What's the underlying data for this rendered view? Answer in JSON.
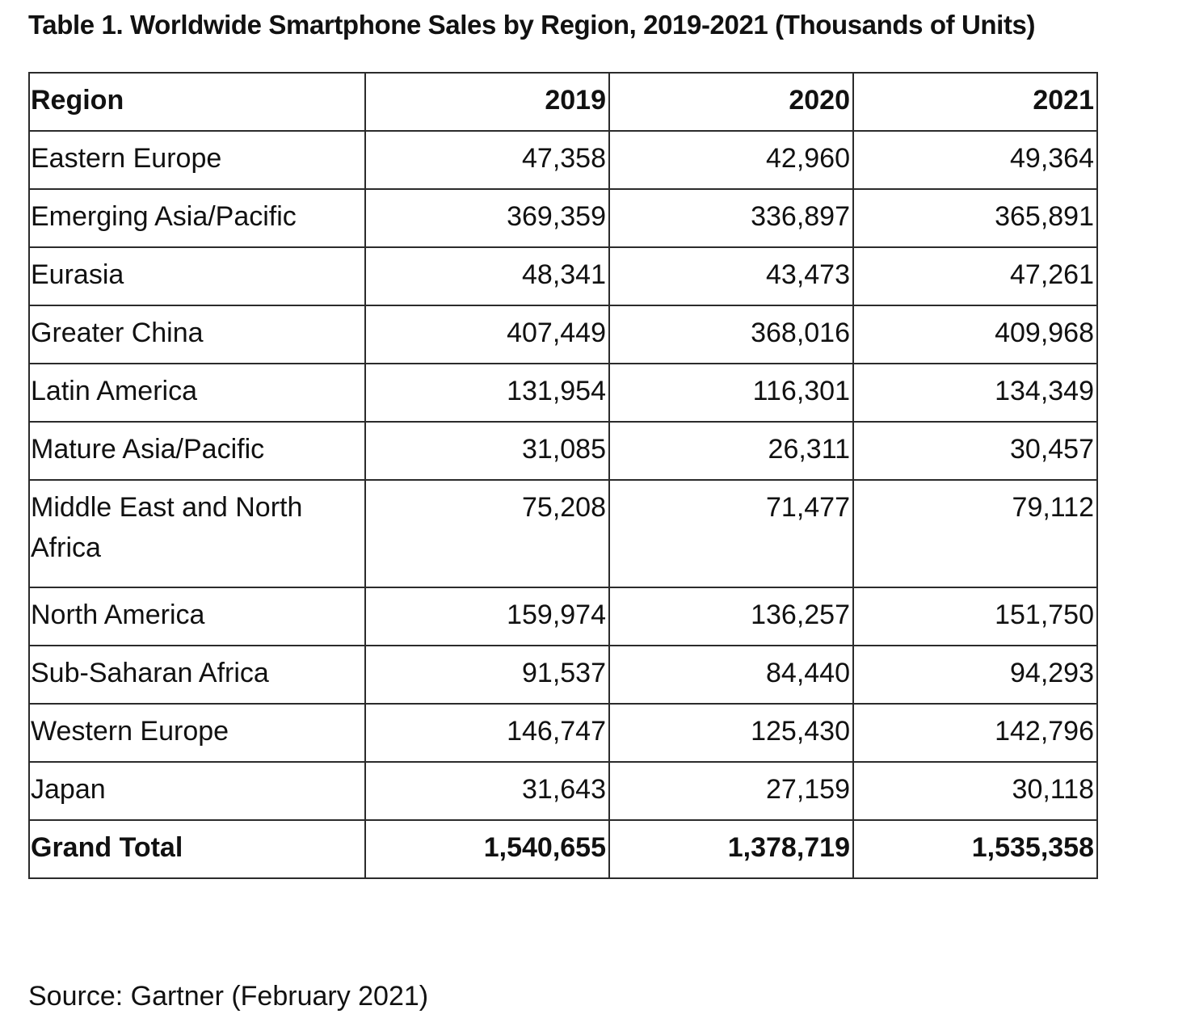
{
  "title": "Table 1. Worldwide Smartphone Sales by Region, 2019-2021 (Thousands of Units)",
  "table": {
    "headers": [
      "Region",
      "2019",
      "2020",
      "2021"
    ],
    "rows": [
      [
        "Eastern Europe",
        "47,358",
        "42,960",
        "49,364"
      ],
      [
        "Emerging Asia/Pacific",
        "369,359",
        "336,897",
        "365,891"
      ],
      [
        "Eurasia",
        "48,341",
        "43,473",
        "47,261"
      ],
      [
        "Greater China",
        "407,449",
        "368,016",
        "409,968"
      ],
      [
        "Latin America",
        "131,954",
        "116,301",
        "134,349"
      ],
      [
        "Mature Asia/Pacific",
        "31,085",
        "26,311",
        "30,457"
      ],
      [
        "Middle East and North Africa",
        "75,208",
        "71,477",
        "79,112"
      ],
      [
        "North America",
        "159,974",
        "136,257",
        "151,750"
      ],
      [
        "Sub-Saharan Africa",
        "91,537",
        "84,440",
        "94,293"
      ],
      [
        "Western Europe",
        "146,747",
        "125,430",
        "142,796"
      ],
      [
        "Japan",
        "31,643",
        "27,159",
        "30,118"
      ]
    ],
    "total": [
      "Grand Total",
      "1,540,655",
      "1,378,719",
      "1,535,358"
    ]
  },
  "source": "Source: Gartner (February 2021)"
}
